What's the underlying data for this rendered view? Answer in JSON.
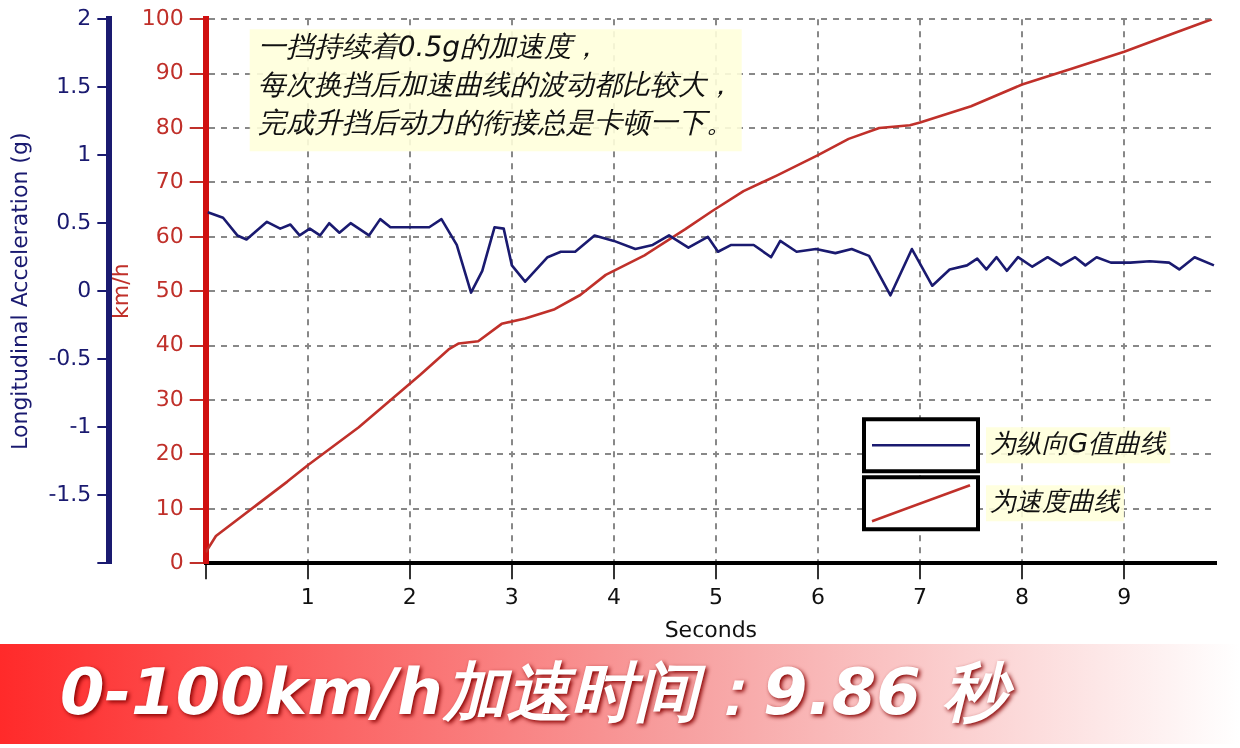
{
  "chart_data": {
    "type": "line",
    "xlabel": "Seconds",
    "ylabel": "Longitudinal Acceleration (g)",
    "y2label": "km/h",
    "xlim": [
      0,
      9.9
    ],
    "xticks": [
      {
        "value": 0,
        "label": null
      },
      1,
      2,
      3,
      4,
      5,
      6,
      7,
      8,
      9
    ],
    "ylim": [
      -2,
      2
    ],
    "yticks": [
      {
        "value": -2,
        "label": null
      },
      -1.5,
      -1,
      -0.5,
      0,
      0.5,
      1,
      1.5,
      2
    ],
    "y2lim": [
      0,
      100
    ],
    "y2ticks": [
      0,
      10,
      20,
      30,
      40,
      50,
      60,
      70,
      80,
      90,
      100
    ],
    "grid": true,
    "legend": "bottom right",
    "series": [
      {
        "name": "为纵向G值曲线",
        "color": "#1a1a70",
        "axis": "y",
        "x": [
          0.02,
          0.17,
          0.31,
          0.4,
          0.6,
          0.73,
          0.83,
          0.92,
          1.02,
          1.12,
          1.21,
          1.31,
          1.42,
          1.6,
          1.71,
          1.81,
          2.0,
          2.19,
          2.31,
          2.46,
          2.6,
          2.71,
          2.83,
          2.92,
          3.0,
          3.13,
          3.35,
          3.48,
          3.62,
          3.81,
          4.0,
          4.21,
          4.38,
          4.54,
          4.73,
          4.92,
          5.02,
          5.15,
          5.37,
          5.54,
          5.63,
          5.79,
          5.98,
          6.17,
          6.33,
          6.5,
          6.71,
          6.92,
          7.12,
          7.29,
          7.46,
          7.56,
          7.65,
          7.75,
          7.85,
          7.96,
          8.1,
          8.25,
          8.38,
          8.52,
          8.62,
          8.73,
          8.87,
          9.06,
          9.25,
          9.44,
          9.54,
          9.69,
          9.88
        ],
        "values": [
          0.58,
          0.54,
          0.41,
          0.38,
          0.51,
          0.46,
          0.49,
          0.41,
          0.46,
          0.41,
          0.5,
          0.43,
          0.5,
          0.41,
          0.53,
          0.47,
          0.47,
          0.47,
          0.53,
          0.34,
          -0.01,
          0.15,
          0.47,
          0.46,
          0.19,
          0.07,
          0.25,
          0.29,
          0.29,
          0.41,
          0.37,
          0.31,
          0.34,
          0.41,
          0.32,
          0.4,
          0.29,
          0.34,
          0.34,
          0.25,
          0.37,
          0.29,
          0.31,
          0.28,
          0.31,
          0.26,
          -0.03,
          0.31,
          0.04,
          0.16,
          0.19,
          0.24,
          0.16,
          0.25,
          0.15,
          0.25,
          0.18,
          0.25,
          0.19,
          0.25,
          0.19,
          0.25,
          0.21,
          0.21,
          0.22,
          0.21,
          0.16,
          0.25,
          0.19
        ]
      },
      {
        "name": "为速度曲线",
        "color": "#c0302a",
        "axis": "y2",
        "x": [
          0,
          0.1,
          0.8,
          1.0,
          1.5,
          2.1,
          2.38,
          2.48,
          2.67,
          2.9,
          3.13,
          3.42,
          3.67,
          3.92,
          4.3,
          4.7,
          4.96,
          5.27,
          5.6,
          6.0,
          6.3,
          6.6,
          6.9,
          7.0,
          7.5,
          8.0,
          8.5,
          9.0,
          9.5,
          9.86
        ],
        "values": [
          2,
          5,
          15,
          18,
          25,
          34.6,
          39.3,
          40.4,
          40.8,
          44,
          45,
          46.7,
          49.3,
          53,
          56.6,
          61.4,
          64.7,
          68.4,
          71.3,
          75,
          78,
          80,
          80.5,
          81,
          84,
          88,
          91,
          94,
          97.5,
          100
        ]
      }
    ],
    "annotations": [
      "一挡持续着0.5g的加速度，",
      "每次换挡后加速曲线的波动都比较大，",
      "完成升挡后动力的衔接总是卡顿一下。",
      "0-100km/h加速时间：9.86 秒"
    ]
  }
}
